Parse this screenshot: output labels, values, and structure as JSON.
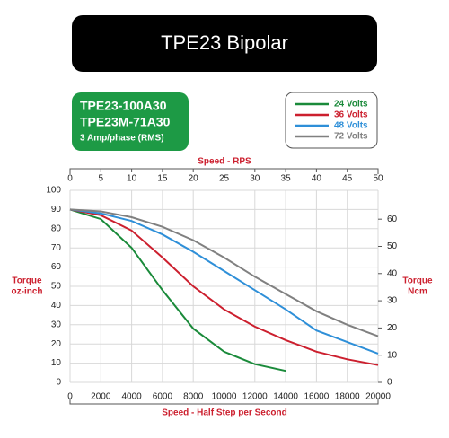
{
  "chart_data": {
    "type": "line",
    "title": "TPE23 Bipolar",
    "model_labels": [
      "TPE23-100A30",
      "TPE23M-71A30",
      "3 Amp/phase (RMS)"
    ],
    "xlabel": "Speed - Half Step per Second",
    "x2label": "Speed - RPS",
    "ylabel": [
      "Torque",
      "oz-inch"
    ],
    "y2label": [
      "Torque",
      "Ncm"
    ],
    "x": [
      0,
      2000,
      4000,
      6000,
      8000,
      10000,
      12000,
      14000,
      16000,
      18000,
      20000
    ],
    "series": [
      {
        "name": "24 Volts",
        "color": "#1a8a3a",
        "values": [
          90,
          85,
          70,
          48,
          28,
          16,
          9.5,
          6,
          null,
          null,
          null
        ]
      },
      {
        "name": "36 Volts",
        "color": "#cc1f2e",
        "values": [
          90,
          87,
          79,
          65,
          50,
          38,
          29,
          22,
          16,
          12,
          9
        ]
      },
      {
        "name": "48 Volts",
        "color": "#2e8fd8",
        "values": [
          90,
          88,
          84,
          77,
          68,
          58,
          48,
          38,
          27,
          21,
          15
        ]
      },
      {
        "name": "72 Volts",
        "color": "#808080",
        "values": [
          90,
          89,
          86,
          81,
          74,
          65,
          55,
          46,
          37,
          30,
          24
        ]
      }
    ],
    "xlim": [
      0,
      20000
    ],
    "xticks": [
      0,
      2000,
      4000,
      6000,
      8000,
      10000,
      12000,
      14000,
      16000,
      18000,
      20000
    ],
    "x2lim": [
      0,
      50
    ],
    "x2ticks": [
      0,
      5,
      10,
      15,
      20,
      25,
      30,
      35,
      40,
      45,
      50
    ],
    "ylim": [
      0,
      100
    ],
    "yticks": [
      0,
      10,
      20,
      30,
      40,
      50,
      60,
      70,
      80,
      90,
      100
    ],
    "y2lim": [
      0,
      70.62
    ],
    "y2ticks": [
      0,
      10,
      20,
      30,
      40,
      50,
      60
    ],
    "grid": true
  }
}
